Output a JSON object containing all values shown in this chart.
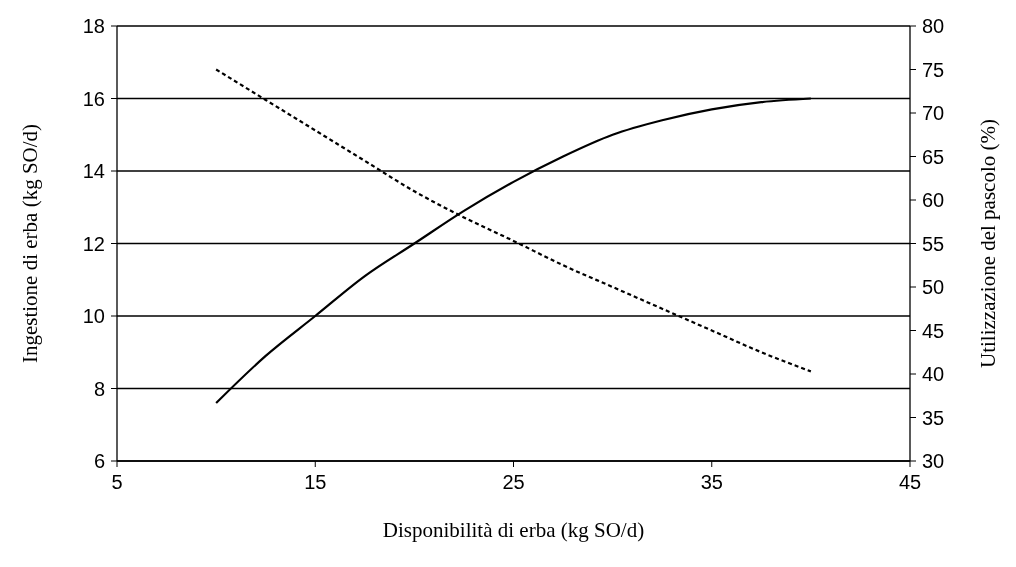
{
  "chart_data": {
    "type": "line",
    "xlabel": "Disponibilità di erba (kg SO/d)",
    "ylabel": "Ingestione di erba (kg SO/d)",
    "y2label": "Utilizzazione del pascolo (%)",
    "xlim": [
      5,
      45
    ],
    "xticks": [
      5,
      15,
      25,
      35,
      45
    ],
    "ylim": [
      6,
      18
    ],
    "yticks": [
      6,
      8,
      10,
      12,
      14,
      16,
      18
    ],
    "y2lim": [
      30,
      80
    ],
    "y2ticks": [
      30,
      35,
      40,
      45,
      50,
      55,
      60,
      65,
      70,
      75,
      80
    ],
    "grid": "y",
    "x": [
      10,
      12.5,
      15,
      17.5,
      20,
      22.5,
      25,
      27.5,
      30,
      32.5,
      35,
      37.5,
      40
    ],
    "series": [
      {
        "color": "#000000",
        "line_style": "solid",
        "values": [
          7.6,
          8.9,
          10.0,
          11.1,
          12.0,
          12.9,
          13.7,
          14.4,
          15.0,
          15.4,
          15.7,
          15.9,
          16.0
        ]
      },
      {
        "color": "#000000",
        "line_style": "dotted",
        "axis": "y2",
        "values": [
          75,
          71.5,
          68,
          64.5,
          61,
          58,
          55.3,
          52.5,
          50,
          47.5,
          45,
          42.5,
          40.3
        ]
      }
    ]
  }
}
